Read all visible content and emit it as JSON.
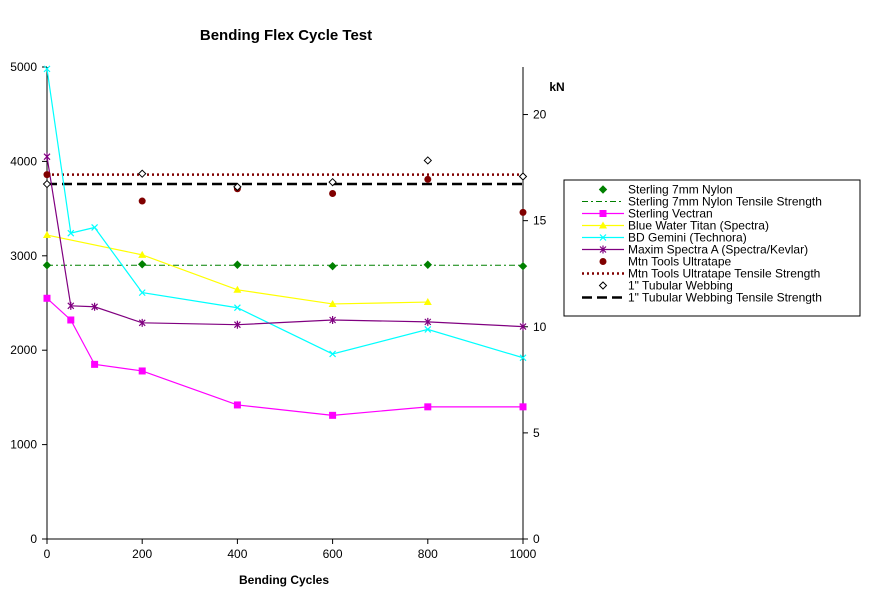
{
  "chart_data": {
    "type": "line",
    "title": "Bending Flex Cycle Test",
    "xlabel": "Bending Cycles",
    "ylabel": "",
    "y2label": "kN",
    "xlim": [
      0,
      1000
    ],
    "ylim": [
      0,
      5000
    ],
    "y2lim": [
      0,
      22.24
    ],
    "x_ticks": [
      "0",
      "200",
      "400",
      "600",
      "800",
      "1000"
    ],
    "y_ticks": [
      "0",
      "1000",
      "2000",
      "3000",
      "4000",
      "5000"
    ],
    "y2_ticks": [
      "0",
      "5",
      "10",
      "15",
      "20"
    ],
    "grid": false,
    "legend_position": "right",
    "series": [
      {
        "name": "Sterling 7mm Nylon",
        "kind": "markers",
        "marker": "diamond-filled",
        "color": "#008000",
        "x": [
          0,
          200,
          400,
          600,
          800,
          1000
        ],
        "y": [
          2900,
          2910,
          2905,
          2890,
          2905,
          2890
        ]
      },
      {
        "name": "Sterling 7mm Nylon Tensile Strength",
        "kind": "hline",
        "dash": "dashdot",
        "color": "#008000",
        "x": [
          0,
          1000
        ],
        "y": [
          2900,
          2900
        ]
      },
      {
        "name": "Sterling Vectran",
        "kind": "line",
        "marker": "square",
        "color": "#ff00ff",
        "x": [
          0,
          50,
          100,
          200,
          400,
          600,
          800,
          1000
        ],
        "y": [
          2550,
          2320,
          1850,
          1780,
          1420,
          1310,
          1400,
          1400
        ]
      },
      {
        "name": "Blue Water Titan (Spectra)",
        "kind": "line",
        "marker": "triangle",
        "color": "#ffff00",
        "x": [
          0,
          200,
          400,
          600,
          800
        ],
        "y": [
          3220,
          3010,
          2640,
          2490,
          2510
        ]
      },
      {
        "name": "BD Gemini (Technora)",
        "kind": "line",
        "marker": "x",
        "color": "#00ffff",
        "x": [
          0,
          50,
          100,
          200,
          400,
          600,
          800,
          1000
        ],
        "y": [
          4980,
          3240,
          3300,
          2610,
          2450,
          1960,
          2220,
          1920
        ]
      },
      {
        "name": "Maxim Spectra A (Spectra/Kevlar)",
        "kind": "line",
        "marker": "star",
        "color": "#800080",
        "x": [
          0,
          50,
          100,
          200,
          400,
          600,
          800,
          1000
        ],
        "y": [
          4050,
          2470,
          2460,
          2290,
          2270,
          2320,
          2300,
          2250
        ]
      },
      {
        "name": "Mtn Tools Ultratape",
        "kind": "markers",
        "marker": "circle-filled",
        "color": "#800000",
        "x": [
          0,
          200,
          400,
          600,
          800,
          1000
        ],
        "y": [
          3860,
          3580,
          3710,
          3660,
          3810,
          3460
        ]
      },
      {
        "name": "Mtn Tools Ultratape Tensile Strength",
        "kind": "hline",
        "dash": "dotted",
        "color": "#800000",
        "x": [
          0,
          1000
        ],
        "y": [
          3860,
          3860
        ]
      },
      {
        "name": "1\" Tubular Webbing",
        "kind": "markers",
        "marker": "diamond-open",
        "color": "#000000",
        "x": [
          0,
          200,
          400,
          600,
          800,
          1000
        ],
        "y": [
          3760,
          3870,
          3730,
          3780,
          4010,
          3840
        ]
      },
      {
        "name": "1\" Tubular Webbing Tensile Strength",
        "kind": "hline",
        "dash": "dashed",
        "color": "#000000",
        "x": [
          0,
          1000
        ],
        "y": [
          3760,
          3760
        ]
      }
    ]
  }
}
